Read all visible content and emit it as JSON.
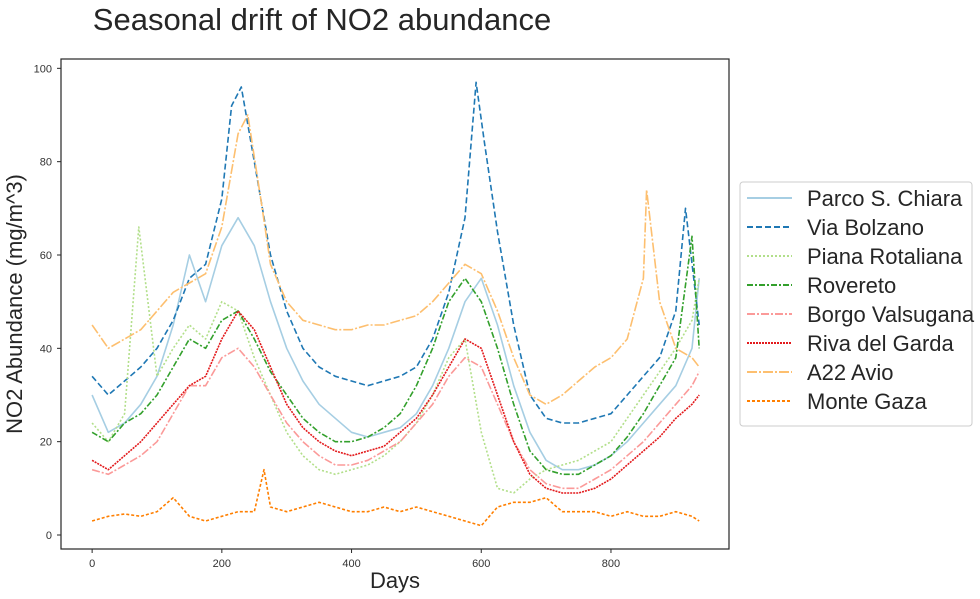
{
  "chart_data": {
    "type": "line",
    "title": "Seasonal drift of NO2 abundance",
    "xlabel": "Days",
    "ylabel": "NO2 Abundance (mg/m^3)",
    "xlim": [
      -48,
      982
    ],
    "ylim": [
      -3,
      102
    ],
    "xticks": [
      0,
      200,
      400,
      600,
      800
    ],
    "yticks": [
      0,
      20,
      40,
      60,
      80,
      100
    ],
    "grid": false,
    "legend_position": "right (outside plot)",
    "series": [
      {
        "name": "Parco S. Chiara",
        "color": "#a6cee3",
        "dash": "",
        "values": [
          [
            0,
            30
          ],
          [
            25,
            22
          ],
          [
            50,
            24
          ],
          [
            75,
            28
          ],
          [
            100,
            34
          ],
          [
            125,
            45
          ],
          [
            150,
            60
          ],
          [
            175,
            50
          ],
          [
            200,
            62
          ],
          [
            225,
            68
          ],
          [
            250,
            62
          ],
          [
            275,
            50
          ],
          [
            300,
            40
          ],
          [
            325,
            33
          ],
          [
            350,
            28
          ],
          [
            375,
            25
          ],
          [
            400,
            22
          ],
          [
            425,
            21
          ],
          [
            450,
            22
          ],
          [
            475,
            23
          ],
          [
            500,
            26
          ],
          [
            525,
            32
          ],
          [
            550,
            40
          ],
          [
            575,
            50
          ],
          [
            600,
            55
          ],
          [
            625,
            45
          ],
          [
            650,
            32
          ],
          [
            675,
            22
          ],
          [
            700,
            16
          ],
          [
            725,
            14
          ],
          [
            750,
            14
          ],
          [
            775,
            15
          ],
          [
            800,
            17
          ],
          [
            825,
            20
          ],
          [
            850,
            24
          ],
          [
            875,
            28
          ],
          [
            900,
            32
          ],
          [
            925,
            40
          ],
          [
            936,
            55
          ]
        ]
      },
      {
        "name": "Via Bolzano",
        "color": "#1f78b4",
        "dash": "6,3",
        "values": [
          [
            0,
            34
          ],
          [
            25,
            30
          ],
          [
            50,
            33
          ],
          [
            75,
            36
          ],
          [
            100,
            40
          ],
          [
            125,
            46
          ],
          [
            150,
            55
          ],
          [
            175,
            58
          ],
          [
            200,
            72
          ],
          [
            215,
            92
          ],
          [
            230,
            96
          ],
          [
            250,
            80
          ],
          [
            275,
            60
          ],
          [
            300,
            48
          ],
          [
            325,
            40
          ],
          [
            350,
            36
          ],
          [
            375,
            34
          ],
          [
            400,
            33
          ],
          [
            425,
            32
          ],
          [
            450,
            33
          ],
          [
            475,
            34
          ],
          [
            500,
            36
          ],
          [
            525,
            42
          ],
          [
            550,
            52
          ],
          [
            575,
            68
          ],
          [
            592,
            97
          ],
          [
            605,
            84
          ],
          [
            625,
            65
          ],
          [
            650,
            45
          ],
          [
            675,
            30
          ],
          [
            700,
            25
          ],
          [
            725,
            24
          ],
          [
            750,
            24
          ],
          [
            775,
            25
          ],
          [
            800,
            26
          ],
          [
            825,
            30
          ],
          [
            850,
            34
          ],
          [
            875,
            38
          ],
          [
            900,
            48
          ],
          [
            915,
            70
          ],
          [
            936,
            45
          ]
        ]
      },
      {
        "name": "Piana Rotaliana",
        "color": "#b2df8a",
        "dash": "2,2",
        "values": [
          [
            0,
            24
          ],
          [
            25,
            20
          ],
          [
            50,
            26
          ],
          [
            72,
            66
          ],
          [
            100,
            34
          ],
          [
            125,
            40
          ],
          [
            150,
            45
          ],
          [
            175,
            42
          ],
          [
            200,
            50
          ],
          [
            225,
            48
          ],
          [
            250,
            38
          ],
          [
            275,
            30
          ],
          [
            300,
            22
          ],
          [
            325,
            17
          ],
          [
            350,
            14
          ],
          [
            375,
            13
          ],
          [
            400,
            14
          ],
          [
            425,
            15
          ],
          [
            450,
            17
          ],
          [
            475,
            20
          ],
          [
            500,
            24
          ],
          [
            525,
            30
          ],
          [
            550,
            38
          ],
          [
            575,
            42
          ],
          [
            600,
            22
          ],
          [
            625,
            10
          ],
          [
            650,
            9
          ],
          [
            675,
            12
          ],
          [
            700,
            14
          ],
          [
            725,
            15
          ],
          [
            750,
            16
          ],
          [
            775,
            18
          ],
          [
            800,
            20
          ],
          [
            825,
            25
          ],
          [
            850,
            30
          ],
          [
            875,
            35
          ],
          [
            900,
            40
          ],
          [
            925,
            46
          ],
          [
            936,
            55
          ]
        ]
      },
      {
        "name": "Rovereto",
        "color": "#33a02c",
        "dash": "6,2,2,2",
        "values": [
          [
            0,
            22
          ],
          [
            25,
            20
          ],
          [
            50,
            24
          ],
          [
            75,
            26
          ],
          [
            100,
            30
          ],
          [
            125,
            36
          ],
          [
            150,
            42
          ],
          [
            175,
            40
          ],
          [
            200,
            46
          ],
          [
            225,
            48
          ],
          [
            250,
            42
          ],
          [
            275,
            35
          ],
          [
            300,
            30
          ],
          [
            325,
            25
          ],
          [
            350,
            22
          ],
          [
            375,
            20
          ],
          [
            400,
            20
          ],
          [
            425,
            21
          ],
          [
            450,
            23
          ],
          [
            475,
            26
          ],
          [
            500,
            32
          ],
          [
            525,
            40
          ],
          [
            550,
            50
          ],
          [
            575,
            55
          ],
          [
            600,
            50
          ],
          [
            625,
            40
          ],
          [
            650,
            28
          ],
          [
            675,
            18
          ],
          [
            700,
            14
          ],
          [
            725,
            13
          ],
          [
            750,
            13
          ],
          [
            775,
            15
          ],
          [
            800,
            17
          ],
          [
            825,
            21
          ],
          [
            850,
            26
          ],
          [
            875,
            32
          ],
          [
            900,
            38
          ],
          [
            925,
            64
          ],
          [
            936,
            40
          ]
        ]
      },
      {
        "name": "Borgo Valsugana",
        "color": "#fb9a99",
        "dash": "8,2,2,2",
        "values": [
          [
            0,
            14
          ],
          [
            25,
            13
          ],
          [
            50,
            15
          ],
          [
            75,
            17
          ],
          [
            100,
            20
          ],
          [
            125,
            26
          ],
          [
            150,
            32
          ],
          [
            175,
            32
          ],
          [
            200,
            38
          ],
          [
            225,
            40
          ],
          [
            250,
            36
          ],
          [
            275,
            30
          ],
          [
            300,
            24
          ],
          [
            325,
            20
          ],
          [
            350,
            17
          ],
          [
            375,
            15
          ],
          [
            400,
            15
          ],
          [
            425,
            16
          ],
          [
            450,
            18
          ],
          [
            475,
            20
          ],
          [
            500,
            24
          ],
          [
            525,
            28
          ],
          [
            550,
            34
          ],
          [
            575,
            38
          ],
          [
            600,
            36
          ],
          [
            625,
            28
          ],
          [
            650,
            20
          ],
          [
            675,
            14
          ],
          [
            700,
            11
          ],
          [
            725,
            10
          ],
          [
            750,
            10
          ],
          [
            775,
            12
          ],
          [
            800,
            14
          ],
          [
            825,
            17
          ],
          [
            850,
            20
          ],
          [
            875,
            24
          ],
          [
            900,
            28
          ],
          [
            925,
            32
          ],
          [
            936,
            35
          ]
        ]
      },
      {
        "name": "Riva del Garda",
        "color": "#e31a1c",
        "dash": "2,1",
        "values": [
          [
            0,
            16
          ],
          [
            25,
            14
          ],
          [
            50,
            17
          ],
          [
            75,
            20
          ],
          [
            100,
            24
          ],
          [
            125,
            28
          ],
          [
            150,
            32
          ],
          [
            175,
            34
          ],
          [
            200,
            42
          ],
          [
            225,
            48
          ],
          [
            250,
            44
          ],
          [
            275,
            36
          ],
          [
            300,
            28
          ],
          [
            325,
            23
          ],
          [
            350,
            20
          ],
          [
            375,
            18
          ],
          [
            400,
            17
          ],
          [
            425,
            18
          ],
          [
            450,
            19
          ],
          [
            475,
            22
          ],
          [
            500,
            25
          ],
          [
            525,
            30
          ],
          [
            550,
            36
          ],
          [
            575,
            42
          ],
          [
            600,
            40
          ],
          [
            625,
            30
          ],
          [
            650,
            20
          ],
          [
            675,
            13
          ],
          [
            700,
            10
          ],
          [
            725,
            9
          ],
          [
            750,
            9
          ],
          [
            775,
            10
          ],
          [
            800,
            12
          ],
          [
            825,
            15
          ],
          [
            850,
            18
          ],
          [
            875,
            21
          ],
          [
            900,
            25
          ],
          [
            925,
            28
          ],
          [
            936,
            30
          ]
        ]
      },
      {
        "name": "A22 Avio",
        "color": "#fdbf6f",
        "dash": "10,2,2,2",
        "values": [
          [
            0,
            45
          ],
          [
            25,
            40
          ],
          [
            50,
            42
          ],
          [
            75,
            44
          ],
          [
            100,
            48
          ],
          [
            125,
            52
          ],
          [
            150,
            54
          ],
          [
            175,
            56
          ],
          [
            200,
            66
          ],
          [
            225,
            86
          ],
          [
            240,
            90
          ],
          [
            260,
            72
          ],
          [
            275,
            58
          ],
          [
            300,
            50
          ],
          [
            325,
            46
          ],
          [
            350,
            45
          ],
          [
            375,
            44
          ],
          [
            400,
            44
          ],
          [
            425,
            45
          ],
          [
            450,
            45
          ],
          [
            475,
            46
          ],
          [
            500,
            47
          ],
          [
            525,
            50
          ],
          [
            550,
            54
          ],
          [
            575,
            58
          ],
          [
            600,
            56
          ],
          [
            625,
            48
          ],
          [
            650,
            38
          ],
          [
            675,
            30
          ],
          [
            700,
            28
          ],
          [
            725,
            30
          ],
          [
            750,
            33
          ],
          [
            775,
            36
          ],
          [
            800,
            38
          ],
          [
            825,
            42
          ],
          [
            850,
            55
          ],
          [
            855,
            74
          ],
          [
            875,
            50
          ],
          [
            900,
            40
          ],
          [
            925,
            38
          ],
          [
            936,
            36
          ]
        ]
      },
      {
        "name": "Monte Gaza",
        "color": "#ff7f00",
        "dash": "3,2",
        "values": [
          [
            0,
            3
          ],
          [
            25,
            4
          ],
          [
            50,
            4.5
          ],
          [
            75,
            4
          ],
          [
            100,
            5
          ],
          [
            125,
            8
          ],
          [
            150,
            4
          ],
          [
            175,
            3
          ],
          [
            200,
            4
          ],
          [
            225,
            5
          ],
          [
            250,
            5
          ],
          [
            265,
            14
          ],
          [
            275,
            6
          ],
          [
            300,
            5
          ],
          [
            325,
            6
          ],
          [
            350,
            7
          ],
          [
            375,
            6
          ],
          [
            400,
            5
          ],
          [
            425,
            5
          ],
          [
            450,
            6
          ],
          [
            475,
            5
          ],
          [
            500,
            6
          ],
          [
            525,
            5
          ],
          [
            550,
            4
          ],
          [
            575,
            3
          ],
          [
            600,
            2
          ],
          [
            625,
            6
          ],
          [
            650,
            7
          ],
          [
            675,
            7
          ],
          [
            700,
            8
          ],
          [
            725,
            5
          ],
          [
            750,
            5
          ],
          [
            775,
            5
          ],
          [
            800,
            4
          ],
          [
            825,
            5
          ],
          [
            850,
            4
          ],
          [
            875,
            4
          ],
          [
            900,
            5
          ],
          [
            925,
            4
          ],
          [
            936,
            3
          ]
        ]
      }
    ]
  }
}
